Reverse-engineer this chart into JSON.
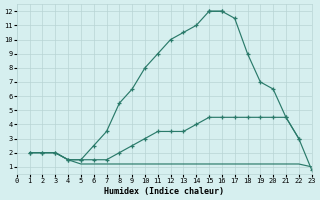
{
  "xlabel": "Humidex (Indice chaleur)",
  "bg_color": "#d6efef",
  "grid_color": "#b8d4d4",
  "line_color": "#2a7a6a",
  "xlim": [
    0,
    23
  ],
  "ylim": [
    0.5,
    12.5
  ],
  "xticks": [
    0,
    1,
    2,
    3,
    4,
    5,
    6,
    7,
    8,
    9,
    10,
    11,
    12,
    13,
    14,
    15,
    16,
    17,
    18,
    19,
    20,
    21,
    22,
    23
  ],
  "yticks": [
    1,
    2,
    3,
    4,
    5,
    6,
    7,
    8,
    9,
    10,
    11,
    12
  ],
  "curves": [
    {
      "x": [
        1,
        2,
        3,
        4,
        5,
        6,
        7,
        8,
        9,
        10,
        11,
        12,
        13,
        14,
        15,
        16
      ],
      "y": [
        2,
        2,
        2,
        1.5,
        1.5,
        2.5,
        3.5,
        5.5,
        6.5,
        8,
        9,
        10,
        10.5,
        11,
        12,
        12
      ],
      "markers": true
    },
    {
      "x": [
        1,
        2,
        3,
        4,
        5,
        6,
        7,
        8,
        9,
        10,
        11,
        12,
        13,
        14,
        15,
        16,
        17,
        18,
        19,
        20,
        21,
        22
      ],
      "y": [
        2,
        2,
        2,
        1.5,
        1.5,
        1.5,
        1.5,
        2,
        2.5,
        3,
        3.5,
        3.5,
        3.5,
        4,
        4.5,
        4.5,
        4.5,
        4.5,
        4.5,
        4.5,
        4.5,
        3
      ],
      "markers": true
    },
    {
      "x": [
        1,
        2,
        3,
        4,
        5,
        6,
        7,
        8,
        9,
        10,
        11,
        12,
        13,
        14,
        15,
        16,
        17,
        18,
        19,
        20,
        21,
        22,
        23
      ],
      "y": [
        2,
        2,
        2,
        1.5,
        1.2,
        1.2,
        1.2,
        1.2,
        1.2,
        1.2,
        1.2,
        1.2,
        1.2,
        1.2,
        1.2,
        1.2,
        1.2,
        1.2,
        1.2,
        1.2,
        1.2,
        1.2,
        1.0
      ],
      "markers": false
    },
    {
      "x": [
        15,
        16,
        17,
        18,
        19,
        20,
        21,
        22,
        23
      ],
      "y": [
        12,
        12,
        11.5,
        9,
        7,
        6.5,
        4.5,
        3,
        0.8
      ],
      "markers": true
    }
  ]
}
